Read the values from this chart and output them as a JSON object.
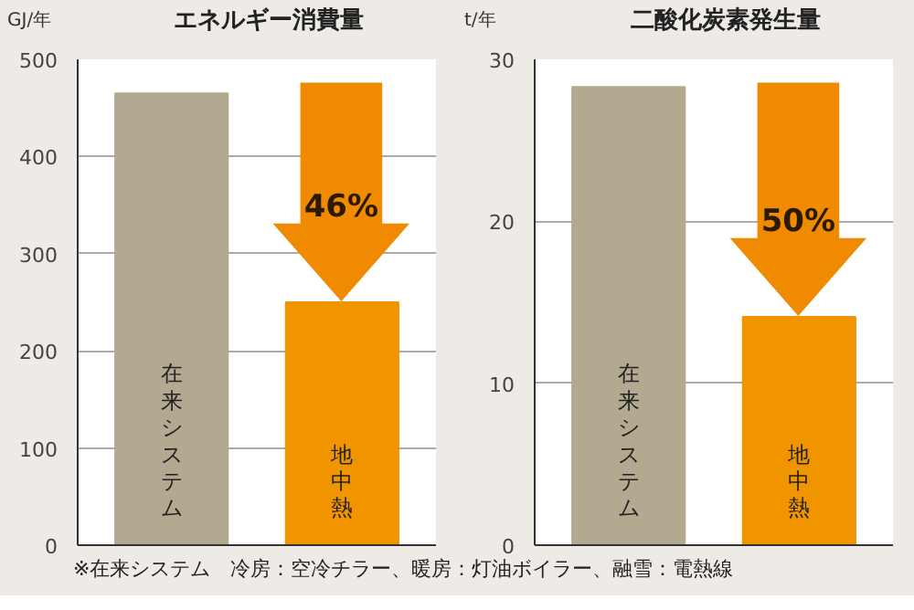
{
  "chart_data": [
    {
      "type": "bar",
      "title": "エネルギー消費量",
      "ylabel": "GJ/年",
      "categories": [
        "在来システム",
        "地中熱"
      ],
      "values": [
        465,
        250
      ],
      "colors": [
        "#b3a991",
        "#f09400"
      ],
      "ylim": [
        0,
        500
      ],
      "yticks": [
        0,
        100,
        200,
        300,
        400,
        500
      ],
      "grid": "y",
      "annotations": [
        {
          "text": "46%",
          "x": "地中熱",
          "y": 250
        },
        "※在来システム　冷房：空冷チラー、暖房：灯油ボイラー、融雪：電熱線"
      ]
    },
    {
      "type": "bar",
      "title": "二酸化炭素発生量",
      "ylabel": "t/年",
      "categories": [
        "在来システム",
        "地中熱"
      ],
      "values": [
        28.3,
        14.1
      ],
      "colors": [
        "#b3a991",
        "#f09400"
      ],
      "ylim": [
        0,
        30
      ],
      "yticks": [
        0,
        10,
        20,
        30
      ],
      "grid": "y",
      "annotations": [
        {
          "text": "50%",
          "x": "地中熱",
          "y": 14.1
        }
      ]
    }
  ]
}
